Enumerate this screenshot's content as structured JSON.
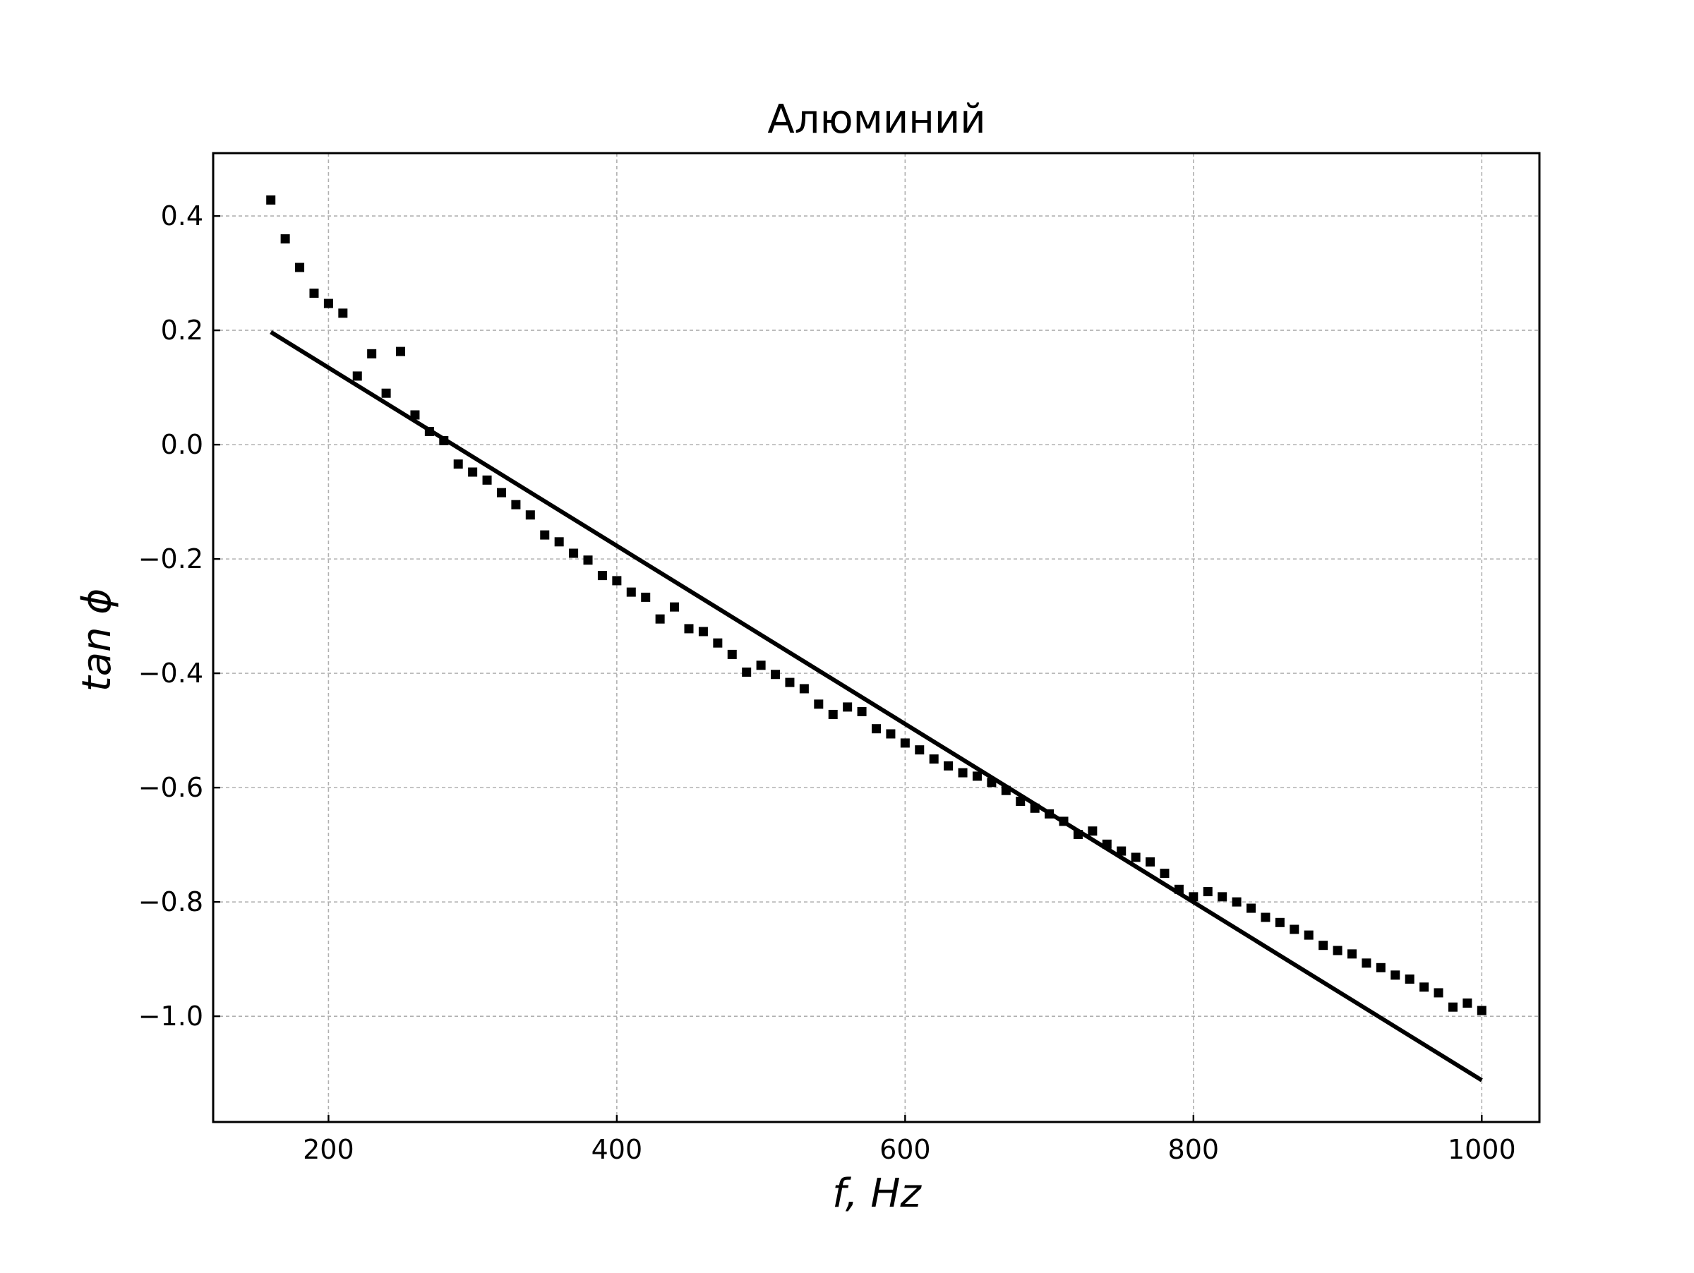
{
  "chart_data": {
    "type": "scatter",
    "title": "Алюминий",
    "xlabel": "f, Hz",
    "ylabel": "tan ϕ",
    "xlim": [
      120,
      1040
    ],
    "ylim": [
      -1.185,
      0.51
    ],
    "xticks": [
      200,
      400,
      600,
      800,
      1000
    ],
    "xtick_labels": [
      "200",
      "400",
      "600",
      "800",
      "1000"
    ],
    "yticks": [
      0.4,
      0.2,
      0.0,
      -0.2,
      -0.4,
      -0.6,
      -0.8,
      -1.0
    ],
    "ytick_labels": [
      "0.4",
      "0.2",
      "0.0",
      "−0.2",
      "−0.4",
      "−0.6",
      "−0.8",
      "−1.0"
    ],
    "grid": true,
    "series": [
      {
        "kind": "scatter",
        "marker": "square",
        "color": "#000000",
        "x": [
          160,
          170,
          180,
          190,
          200,
          210,
          220,
          230,
          240,
          250,
          260,
          270,
          280,
          290,
          300,
          310,
          320,
          330,
          340,
          350,
          360,
          370,
          380,
          390,
          400,
          410,
          420,
          430,
          440,
          450,
          460,
          470,
          480,
          490,
          500,
          510,
          520,
          530,
          540,
          550,
          560,
          570,
          580,
          590,
          600,
          610,
          620,
          630,
          640,
          650,
          660,
          670,
          680,
          690,
          700,
          710,
          720,
          730,
          740,
          750,
          760,
          770,
          780,
          790,
          800,
          810,
          820,
          830,
          840,
          850,
          860,
          870,
          880,
          890,
          900,
          910,
          920,
          930,
          940,
          950,
          960,
          970,
          980,
          990,
          1000
        ],
        "y": [
          0.428,
          0.36,
          0.31,
          0.265,
          0.247,
          0.23,
          0.12,
          0.159,
          0.09,
          0.163,
          0.052,
          0.023,
          0.007,
          -0.034,
          -0.048,
          -0.062,
          -0.084,
          -0.105,
          -0.123,
          -0.158,
          -0.17,
          -0.19,
          -0.202,
          -0.229,
          -0.238,
          -0.258,
          -0.267,
          -0.305,
          -0.284,
          -0.322,
          -0.327,
          -0.347,
          -0.367,
          -0.398,
          -0.386,
          -0.402,
          -0.416,
          -0.427,
          -0.454,
          -0.472,
          -0.459,
          -0.467,
          -0.497,
          -0.506,
          -0.522,
          -0.534,
          -0.55,
          -0.562,
          -0.574,
          -0.58,
          -0.591,
          -0.605,
          -0.624,
          -0.636,
          -0.646,
          -0.659,
          -0.682,
          -0.676,
          -0.699,
          -0.711,
          -0.722,
          -0.73,
          -0.75,
          -0.778,
          -0.791,
          -0.782,
          -0.791,
          -0.8,
          -0.811,
          -0.827,
          -0.836,
          -0.848,
          -0.858,
          -0.876,
          -0.885,
          -0.891,
          -0.907,
          -0.915,
          -0.928,
          -0.935,
          -0.949,
          -0.959,
          -0.984,
          -0.977,
          -0.99
        ]
      },
      {
        "kind": "line",
        "color": "#000000",
        "x": [
          160,
          1000
        ],
        "y": [
          0.197,
          -1.112
        ]
      }
    ]
  }
}
